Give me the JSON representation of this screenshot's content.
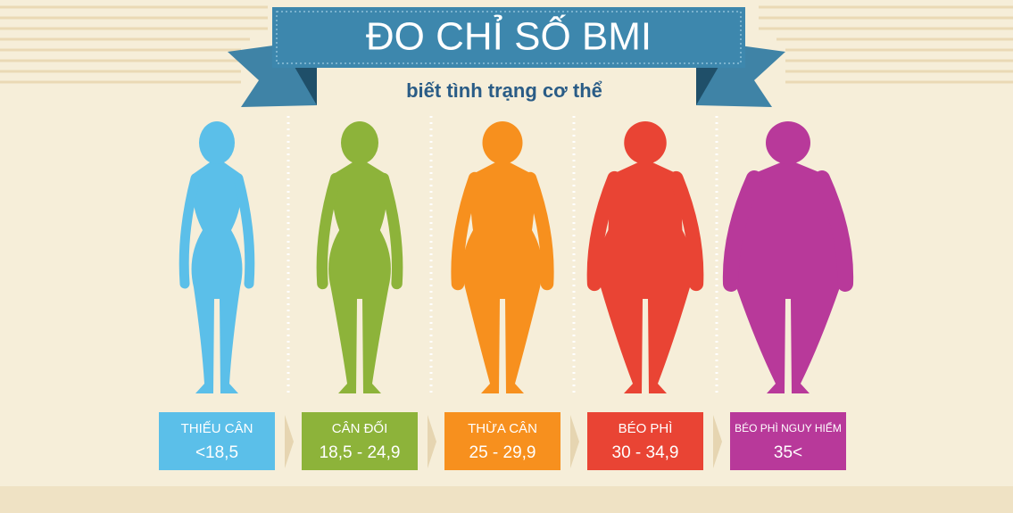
{
  "header": {
    "title": "ĐO CHỈ SỐ BMI",
    "subtitle": "biết tình trạng cơ thể"
  },
  "categories": [
    {
      "label": "THIẾU CÂN",
      "range": "<18,5",
      "color": "#5bbfe9"
    },
    {
      "label": "CÂN ĐỐI",
      "range": "18,5 - 24,9",
      "color": "#8db33a"
    },
    {
      "label": "THỪA CÂN",
      "range": "25 - 29,9",
      "color": "#f7901e"
    },
    {
      "label": "BÉO PHÌ",
      "range": "30 - 34,9",
      "color": "#e94434"
    },
    {
      "label": "BÉO PHÌ NGUY HIỂM",
      "range": "35<",
      "color": "#b8399a"
    }
  ]
}
